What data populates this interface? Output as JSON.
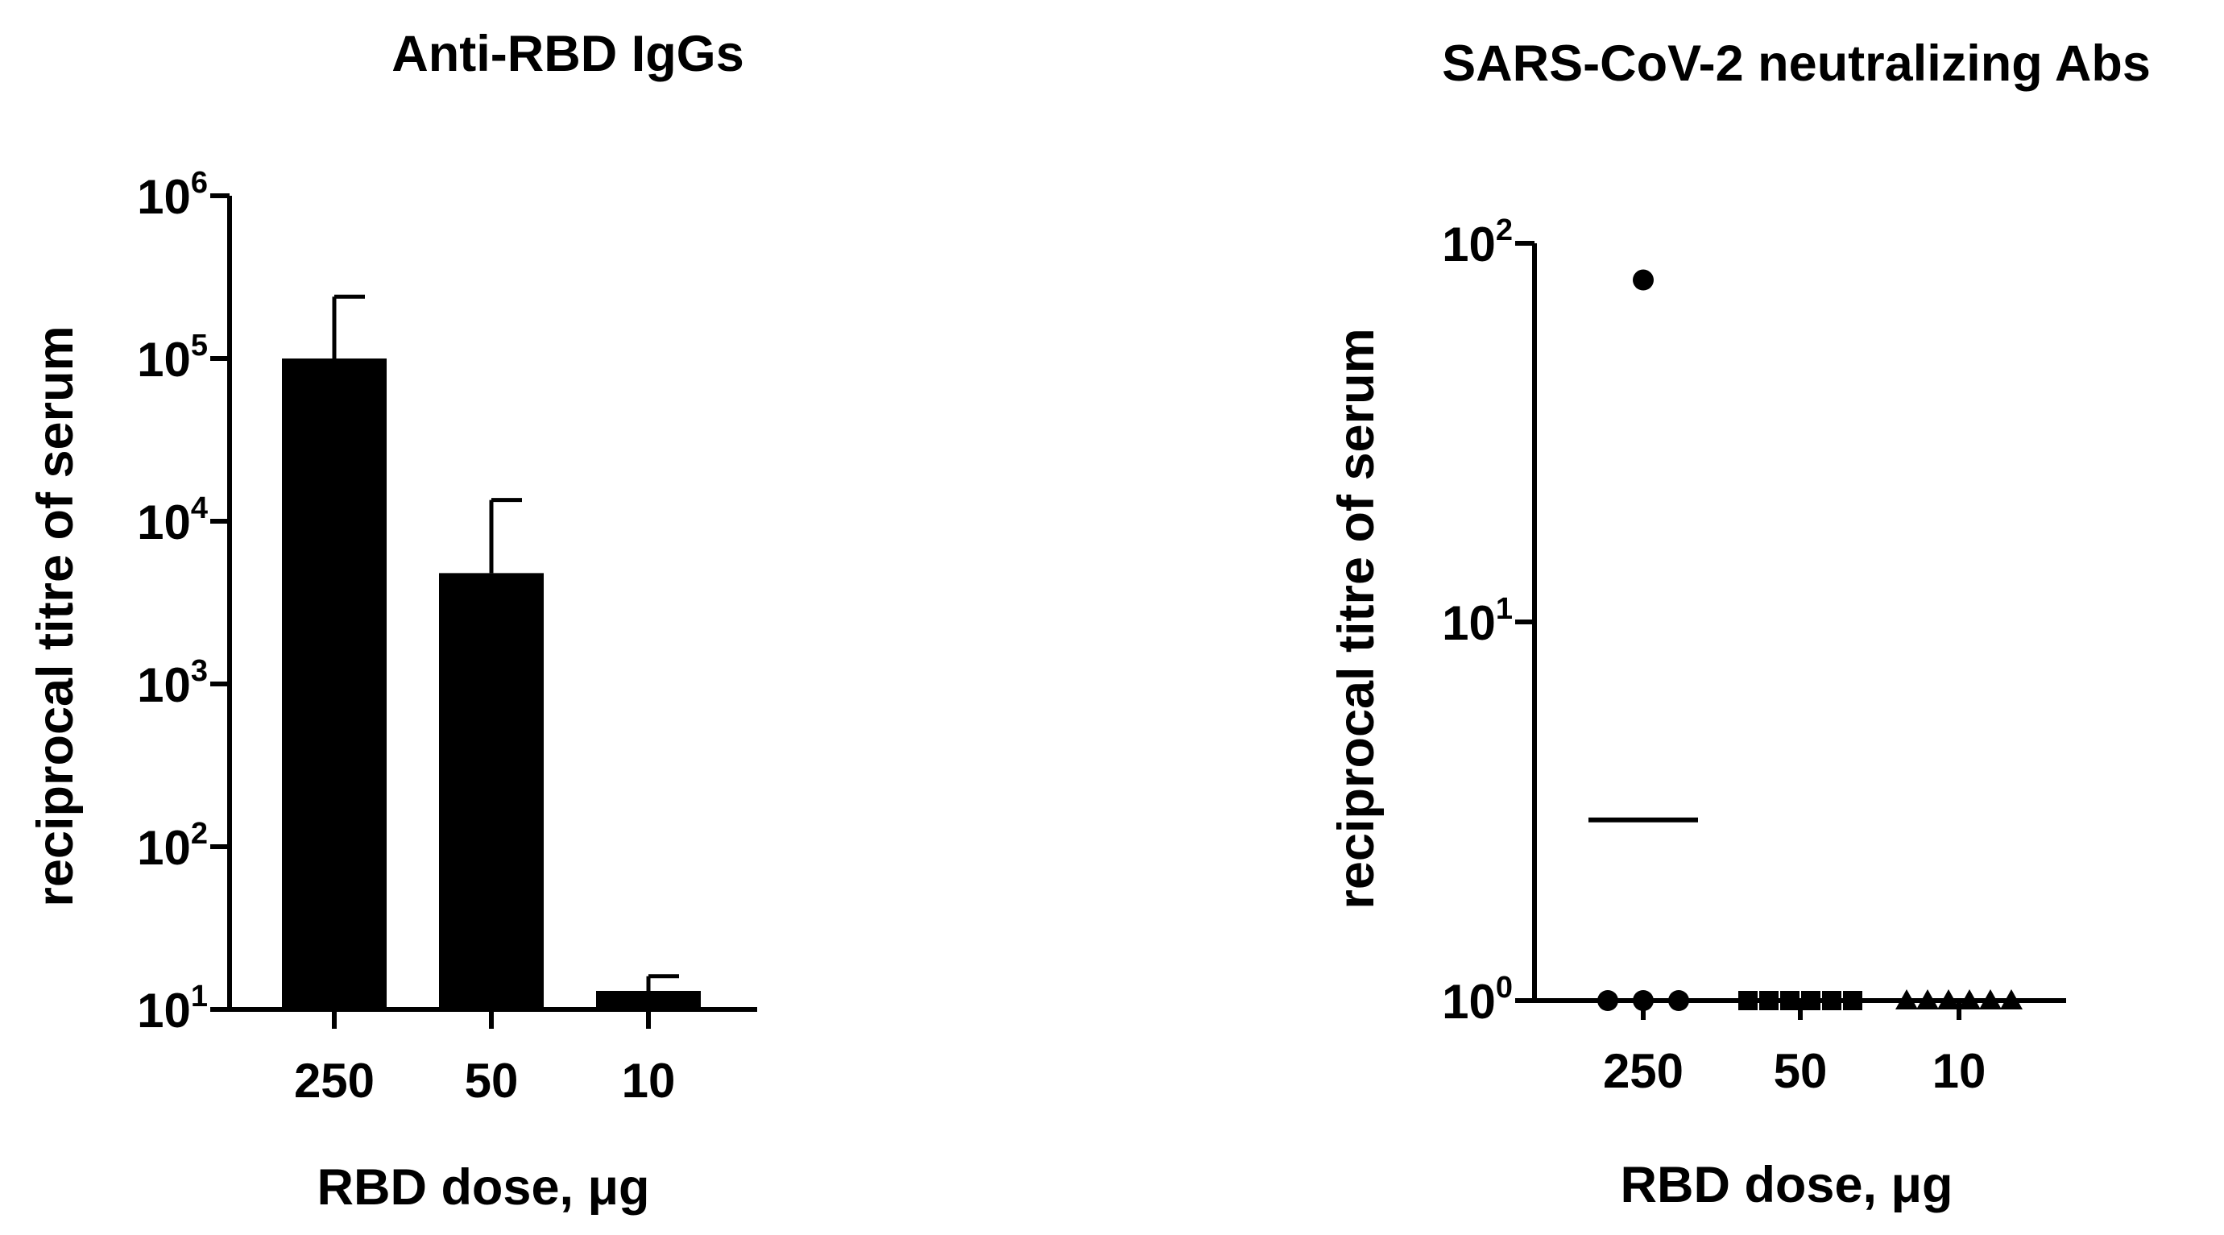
{
  "chart_data": [
    {
      "type": "bar",
      "title": "Anti-RBD IgGs",
      "xlabel": "RBD dose, μg",
      "ylabel": "reciprocal titre of serum",
      "categories": [
        "250",
        "50",
        "10"
      ],
      "values": [
        100000,
        4800,
        13
      ],
      "error_upper": [
        240000,
        13500,
        16
      ],
      "yscale": "log",
      "ylim": [
        10,
        1000000
      ],
      "yticks": [
        {
          "base": "10",
          "exp": "1"
        },
        {
          "base": "10",
          "exp": "2"
        },
        {
          "base": "10",
          "exp": "3"
        },
        {
          "base": "10",
          "exp": "4"
        },
        {
          "base": "10",
          "exp": "5"
        },
        {
          "base": "10",
          "exp": "6"
        }
      ],
      "bar_color": "#000000",
      "grid": false
    },
    {
      "type": "scatter",
      "title": "SARS-CoV-2 neutralizing Abs",
      "xlabel": "RBD dose, μg",
      "ylabel": "reciprocal titre of serum",
      "categories": [
        "250",
        "50",
        "10"
      ],
      "yscale": "log",
      "ylim": [
        1,
        100
      ],
      "yticks": [
        {
          "base": "10",
          "exp": "0"
        },
        {
          "base": "10",
          "exp": "1"
        },
        {
          "base": "10",
          "exp": "2"
        }
      ],
      "groups": [
        {
          "category": "250",
          "marker": "circle",
          "points": [
            80,
            1,
            1,
            1
          ],
          "mean": 3
        },
        {
          "category": "50",
          "marker": "square",
          "points": [
            1,
            1,
            1,
            1,
            1,
            1
          ]
        },
        {
          "category": "10",
          "marker": "triangle",
          "points": [
            1,
            1,
            1,
            1,
            1,
            1
          ]
        }
      ],
      "marker_color": "#000000",
      "grid": false
    }
  ]
}
